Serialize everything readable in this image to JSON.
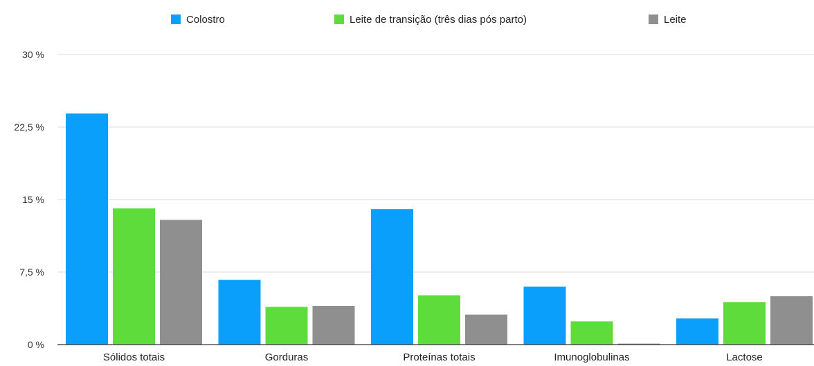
{
  "chart_data": {
    "type": "bar",
    "categories": [
      "Sólidos totais",
      "Gorduras",
      "Proteínas totais",
      "Imunoglobulinas",
      "Lactose"
    ],
    "series": [
      {
        "name": "Colostro",
        "color": "#0A9FFA",
        "values": [
          23.9,
          6.7,
          14.0,
          6.0,
          2.7
        ]
      },
      {
        "name": "Leite de transição (três dias pós parto)",
        "color": "#5DDC3C",
        "values": [
          14.1,
          3.9,
          5.1,
          2.4,
          4.4
        ]
      },
      {
        "name": "Leite",
        "color": "#8F8F8F",
        "values": [
          12.9,
          4.0,
          3.1,
          0.1,
          5.0
        ]
      }
    ],
    "yticks": [
      "0 %",
      "7,5 %",
      "15 %",
      "22,5 %",
      "30 %"
    ],
    "ytick_values": [
      0,
      7.5,
      15,
      22.5,
      30
    ],
    "ylim": [
      0,
      30
    ],
    "grid": true,
    "legend_position": "top",
    "title": "",
    "xlabel": "",
    "ylabel": ""
  }
}
